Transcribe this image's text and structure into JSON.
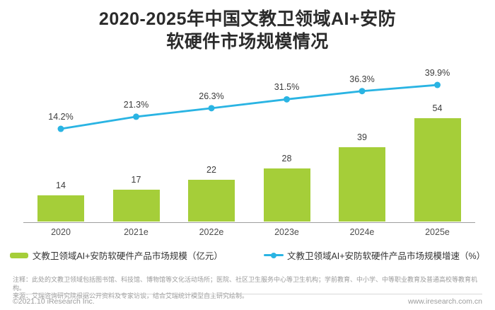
{
  "title": {
    "line1": "2020-2025年中国文教卫领域AI+安防",
    "line2": "软硬件市场规模情况"
  },
  "chart_data": {
    "type": "bar+line",
    "categories": [
      "2020",
      "2021e",
      "2022e",
      "2023e",
      "2024e",
      "2025e"
    ],
    "series": [
      {
        "name": "文教卫领域AI+安防软硬件产品市场规模（亿元）",
        "type": "bar",
        "values": [
          14,
          17,
          22,
          28,
          39,
          54
        ],
        "unit": "亿元",
        "color": "#a5ce39"
      },
      {
        "name": "文教卫领域AI+安防软硬件产品市场规模增速（%）",
        "type": "line",
        "values": [
          14.2,
          21.3,
          26.3,
          31.5,
          36.3,
          39.9
        ],
        "unit": "%",
        "color": "#2ab4e3"
      }
    ],
    "value_labels": true,
    "grid": false,
    "legend_position": "bottom",
    "x_axis_visible": true,
    "y_axis_visible": false
  },
  "notes": {
    "line1": "注释：此处的文教卫领域包括图书馆、科技馆、博物馆等文化活动场所；医院、社区卫生服务中心等卫生机构；学前教育、中小学、中等职业教育及普通高校等教育机构。",
    "line2": "来源：艾瑞咨询研究院根据公开资料及专家访谈，结合艾瑞统计模型自主研究绘制。"
  },
  "footer": {
    "copyright": "©2021.10 iResearch Inc.",
    "website": "www.iresearch.com.cn"
  }
}
